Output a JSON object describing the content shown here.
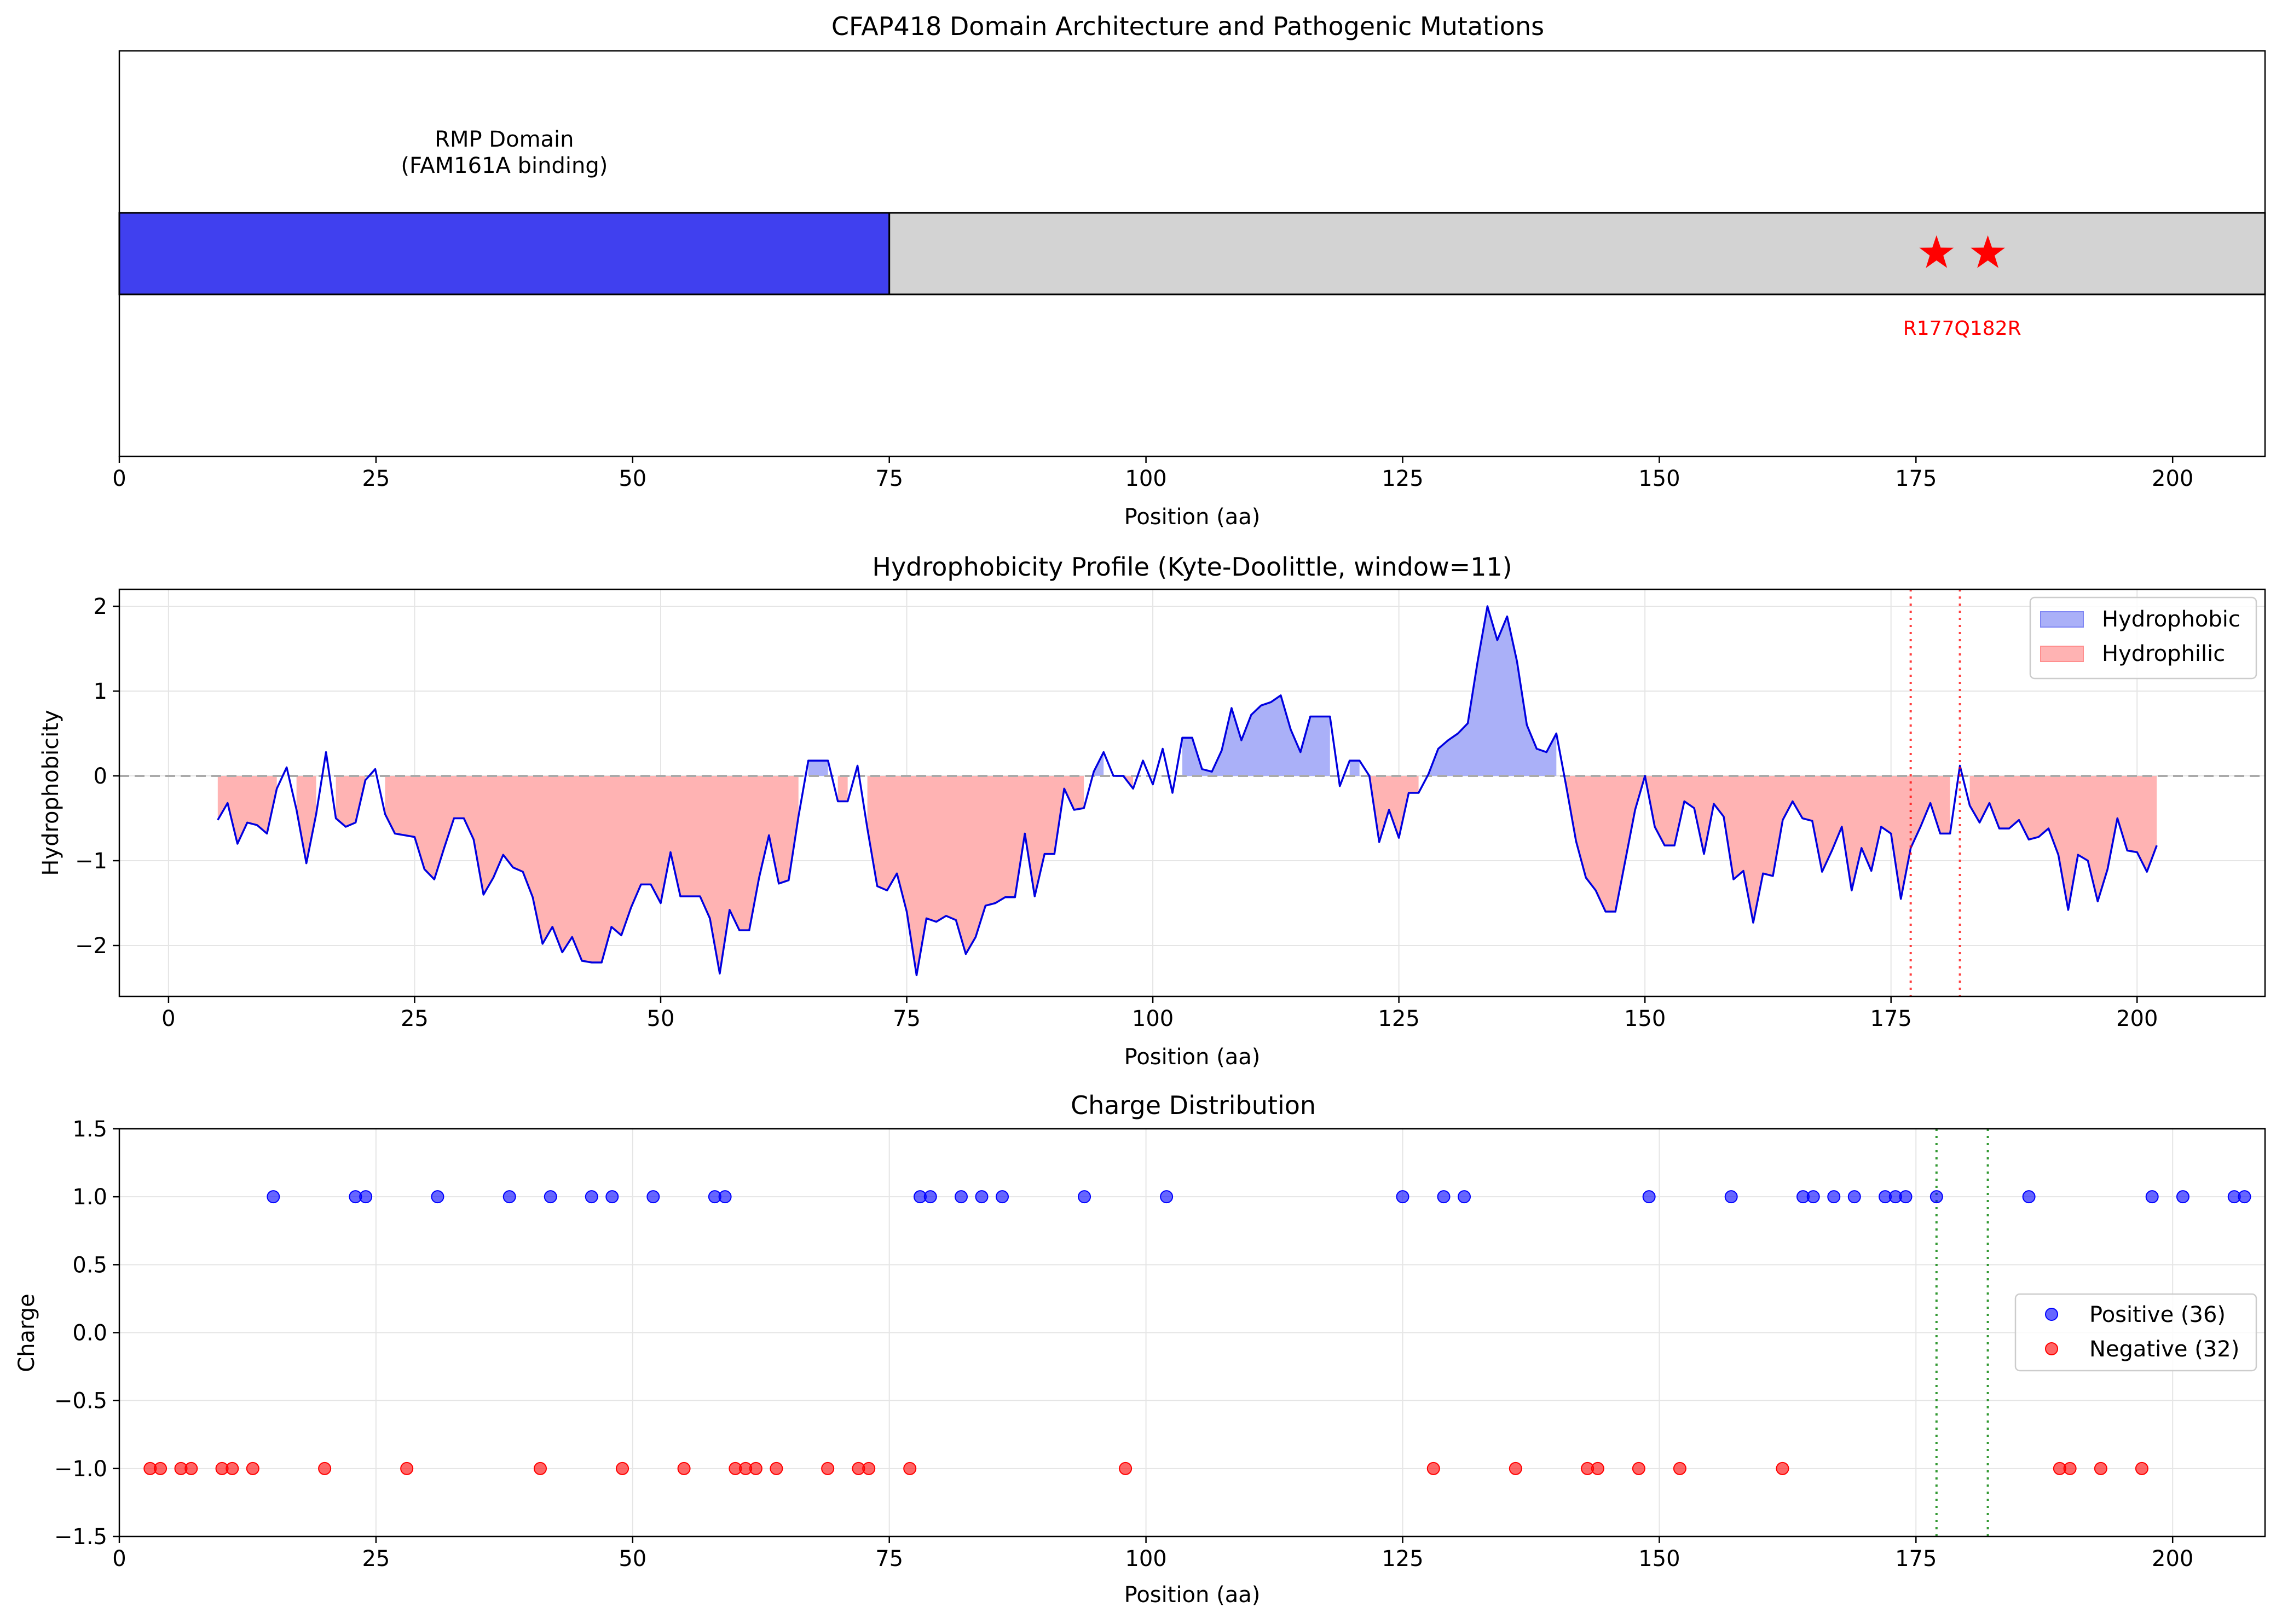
{
  "chart_data": [
    {
      "type": "bar",
      "title": "CFAP418 Domain Architecture and Pathogenic Mutations",
      "xlabel": "Position (aa)",
      "ylabel": "",
      "xlim": [
        0,
        209
      ],
      "xticks": [
        0,
        25,
        50,
        75,
        100,
        125,
        150,
        175,
        200
      ],
      "domains": [
        {
          "start": 0,
          "end": 75,
          "name": "RMP Domain",
          "note": "(FAM161A binding)",
          "color": "#4040ef"
        },
        {
          "start": 75,
          "end": 209,
          "name": "",
          "note": "",
          "color": "#d3d3d3"
        }
      ],
      "mutations": [
        {
          "position": 177,
          "label": "R177Q",
          "color": "#ff0000"
        },
        {
          "position": 182,
          "label": "Q182R",
          "color": "#ff0000"
        }
      ],
      "grid": false
    },
    {
      "type": "area",
      "title": "Hydrophobicity Profile (Kyte-Doolittle, window=11)",
      "xlabel": "Position (aa)",
      "ylabel": "Hydrophobicity",
      "xlim": [
        -5,
        213
      ],
      "ylim": [
        -2.6,
        2.2
      ],
      "xticks": [
        0,
        25,
        50,
        75,
        100,
        125,
        150,
        175,
        200
      ],
      "yticks": [
        -2,
        -1,
        0,
        1,
        2
      ],
      "x_start": 5,
      "x_step": 1,
      "values": [
        -0.52,
        -0.32,
        -0.8,
        -0.55,
        -0.58,
        -0.68,
        -0.15,
        0.1,
        -0.4,
        -1.03,
        -0.45,
        0.28,
        -0.5,
        -0.6,
        -0.55,
        -0.05,
        0.08,
        -0.45,
        -0.68,
        -0.7,
        -0.72,
        -1.1,
        -1.22,
        -0.85,
        -0.5,
        -0.5,
        -0.75,
        -1.4,
        -1.2,
        -0.93,
        -1.08,
        -1.13,
        -1.43,
        -1.98,
        -1.78,
        -2.08,
        -1.9,
        -2.18,
        -2.2,
        -2.2,
        -1.78,
        -1.88,
        -1.55,
        -1.28,
        -1.28,
        -1.5,
        -0.9,
        -1.42,
        -1.42,
        -1.42,
        -1.68,
        -2.33,
        -1.58,
        -1.82,
        -1.82,
        -1.2,
        -0.7,
        -1.27,
        -1.23,
        -0.48,
        0.18,
        0.18,
        0.18,
        -0.3,
        -0.3,
        0.12,
        -0.62,
        -1.3,
        -1.35,
        -1.15,
        -1.6,
        -2.35,
        -1.68,
        -1.72,
        -1.65,
        -1.7,
        -2.1,
        -1.9,
        -1.53,
        -1.5,
        -1.43,
        -1.43,
        -0.68,
        -1.42,
        -0.92,
        -0.92,
        -0.15,
        -0.4,
        -0.38,
        0.05,
        0.28,
        0.0,
        0.0,
        -0.15,
        0.18,
        -0.1,
        0.32,
        -0.2,
        0.45,
        0.45,
        0.08,
        0.05,
        0.3,
        0.8,
        0.42,
        0.72,
        0.83,
        0.87,
        0.95,
        0.55,
        0.28,
        0.7,
        0.7,
        0.7,
        -0.12,
        0.18,
        0.18,
        0.0,
        -0.78,
        -0.4,
        -0.73,
        -0.2,
        -0.2,
        0.02,
        0.32,
        0.42,
        0.5,
        0.62,
        1.35,
        2.0,
        1.6,
        1.88,
        1.35,
        0.6,
        0.32,
        0.28,
        0.5,
        -0.12,
        -0.77,
        -1.2,
        -1.35,
        -1.6,
        -1.6,
        -1.0,
        -0.4,
        0.0,
        -0.6,
        -0.82,
        -0.82,
        -0.3,
        -0.38,
        -0.92,
        -0.33,
        -0.48,
        -1.22,
        -1.12,
        -1.73,
        -1.15,
        -1.18,
        -0.52,
        -0.3,
        -0.5,
        -0.53,
        -1.13,
        -0.88,
        -0.6,
        -1.35,
        -0.85,
        -1.12,
        -0.6,
        -0.68,
        -1.45,
        -0.85,
        -0.6,
        -0.32,
        -0.68,
        -0.68,
        0.12,
        -0.35,
        -0.55,
        -0.32,
        -0.62,
        -0.62,
        -0.52,
        -0.75,
        -0.72,
        -0.62,
        -0.93,
        -1.58,
        -0.93,
        -1.0,
        -1.48,
        -1.1,
        -0.5,
        -0.88,
        -0.9,
        -1.13,
        -0.82
      ],
      "series": [
        {
          "name": "Hydrophobic",
          "color": "#0000ff",
          "fill": "#aab0f8"
        },
        {
          "name": "Hydrophilic",
          "color": "#ff0000",
          "fill": "#ffb3b3"
        }
      ],
      "line_color": "#0000e0",
      "reference_line": 0,
      "vlines": [
        177,
        182
      ],
      "vline_color": "#ff0000",
      "legend": "top-right",
      "grid": true
    },
    {
      "type": "scatter",
      "title": "Charge Distribution",
      "xlabel": "Position (aa)",
      "ylabel": "Charge",
      "xlim": [
        0,
        209
      ],
      "ylim": [
        -1.5,
        1.5
      ],
      "xticks": [
        0,
        25,
        50,
        75,
        100,
        125,
        150,
        175,
        200
      ],
      "yticks": [
        1.5,
        1.0,
        0.5,
        0.0,
        -0.5,
        -1.0,
        -1.5
      ],
      "series": [
        {
          "name": "Positive (36)",
          "y": 1.0,
          "color": "#0000ff",
          "x": [
            15,
            23,
            24,
            31,
            38,
            42,
            46,
            48,
            52,
            58,
            59,
            78,
            79,
            82,
            84,
            86,
            94,
            102,
            125,
            129,
            131,
            149,
            157,
            164,
            165,
            167,
            169,
            172,
            173,
            174,
            177,
            186,
            198,
            201,
            206,
            207
          ]
        },
        {
          "name": "Negative (32)",
          "y": -1.0,
          "color": "#ff0000",
          "x": [
            3,
            4,
            6,
            7,
            10,
            11,
            13,
            20,
            28,
            41,
            49,
            55,
            60,
            61,
            62,
            64,
            69,
            72,
            73,
            77,
            98,
            128,
            136,
            143,
            144,
            148,
            152,
            162,
            189,
            190,
            193,
            197
          ]
        }
      ],
      "vlines": [
        177,
        182
      ],
      "vline_color": "#008000",
      "legend": "center-right",
      "grid": true
    }
  ]
}
